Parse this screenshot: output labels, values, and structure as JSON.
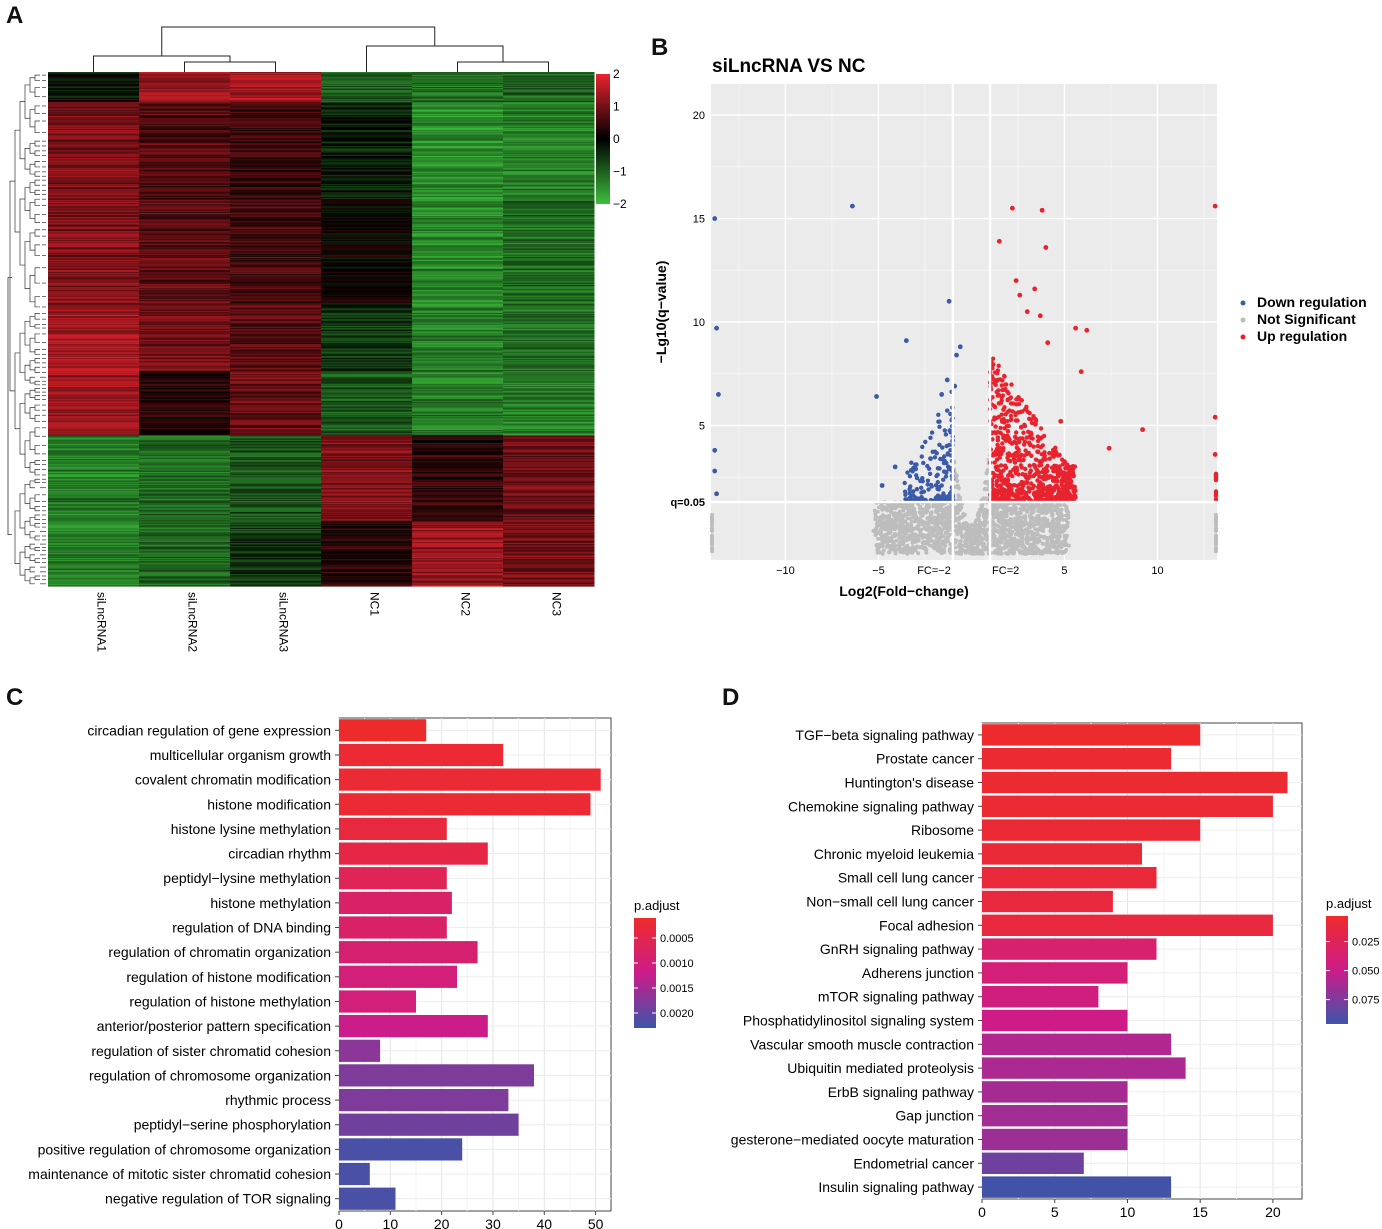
{
  "panels": {
    "a": "A",
    "b": "B",
    "c": "C",
    "d": "D"
  },
  "colors": {
    "heat_low": "#3cbf3c",
    "heat_mid": "#000000",
    "heat_high": "#e8232e",
    "down": "#3b5ba8",
    "ns": "#bdbdbd",
    "up": "#e8232e",
    "padj_low": "#ee2b2b",
    "padj_mid": "#cc1c8a",
    "padj_high": "#3c55a8",
    "plot_bg": "#ebebeb"
  },
  "chart_data": [
    {
      "type": "heatmap",
      "id": "A",
      "columns": [
        "siLncRNA1",
        "siLncRNA2",
        "siLncRNA3",
        "NC1",
        "NC2",
        "NC3"
      ],
      "colorbar": {
        "ticks": [
          "2",
          "1",
          "0",
          "−1",
          "−2"
        ],
        "range": [
          -2,
          2
        ]
      },
      "row_blocks": [
        {
          "rows": 28,
          "values": [
            -0.2,
            1.3,
            1.4,
            -1.0,
            -1.2,
            -1.0
          ]
        },
        {
          "rows": 90,
          "values": [
            1.0,
            0.7,
            0.5,
            -0.3,
            -1.5,
            -1.3
          ]
        },
        {
          "rows": 100,
          "values": [
            1.1,
            0.8,
            0.6,
            0.0,
            -1.4,
            -1.1
          ]
        },
        {
          "rows": 60,
          "values": [
            1.4,
            1.0,
            0.8,
            -0.6,
            -1.3,
            -1.2
          ]
        },
        {
          "rows": 60,
          "values": [
            1.3,
            0.3,
            0.9,
            -0.9,
            -1.3,
            -1.3
          ]
        },
        {
          "rows": 80,
          "values": [
            -1.3,
            -1.1,
            -0.9,
            1.1,
            0.4,
            0.9
          ]
        },
        {
          "rows": 60,
          "values": [
            -1.3,
            -1.0,
            -0.6,
            0.3,
            1.3,
            1.0
          ]
        }
      ]
    },
    {
      "type": "scatter",
      "id": "B",
      "title": "siLncRNA VS NC",
      "xlabel": "Log2(Fold−change)",
      "ylabel": "−Lg10(q−value)",
      "xlim": [
        -14,
        13.2
      ],
      "ylim": [
        -1.5,
        21.5
      ],
      "xticks": [
        "−10",
        "−5",
        "5",
        "10"
      ],
      "xtick_values": [
        -10,
        -5,
        5,
        10
      ],
      "yticks": [
        "5",
        "10",
        "15",
        "20"
      ],
      "ytick_values": [
        5,
        10,
        15,
        20
      ],
      "fc_lines": [
        -1,
        1
      ],
      "fc_labels": [
        "FC=−2",
        "FC=2"
      ],
      "q_line": 1.3,
      "q_label": "q=0.05",
      "legend": [
        "Down regulation",
        "Not Significant",
        "Up regulation"
      ],
      "down_points": [
        [
          -6.4,
          15.6
        ],
        [
          -13.8,
          15.0
        ],
        [
          -1.2,
          11.0
        ],
        [
          -3.5,
          9.1
        ],
        [
          -0.6,
          8.8
        ],
        [
          -0.8,
          8.4
        ],
        [
          -13.7,
          9.7
        ],
        [
          -5.1,
          6.4
        ],
        [
          -1.3,
          7.2
        ],
        [
          -0.9,
          6.9
        ],
        [
          -1.6,
          6.5
        ],
        [
          -13.6,
          6.5
        ],
        [
          -4.1,
          3.0
        ],
        [
          -13.8,
          3.8
        ],
        [
          -4.8,
          2.1
        ],
        [
          -3.0,
          2.9
        ],
        [
          -2.2,
          3.4
        ],
        [
          -13.7,
          1.7
        ],
        [
          -13.8,
          2.8
        ]
      ],
      "up_points": [
        [
          2.2,
          15.5
        ],
        [
          3.8,
          15.4
        ],
        [
          13.1,
          15.6
        ],
        [
          1.5,
          13.9
        ],
        [
          4.0,
          13.6
        ],
        [
          2.4,
          12.0
        ],
        [
          3.4,
          11.6
        ],
        [
          2.6,
          11.3
        ],
        [
          3.0,
          10.5
        ],
        [
          3.7,
          10.3
        ],
        [
          5.6,
          9.7
        ],
        [
          6.2,
          9.6
        ],
        [
          4.1,
          9.0
        ],
        [
          5.9,
          7.6
        ],
        [
          9.2,
          4.8
        ],
        [
          7.4,
          3.9
        ],
        [
          13.1,
          5.4
        ],
        [
          4.8,
          5.2
        ],
        [
          13.1,
          3.6
        ]
      ]
    },
    {
      "type": "bar",
      "id": "C",
      "orientation": "horizontal",
      "categories": [
        "circadian regulation of gene expression",
        "multicellular organism growth",
        "covalent chromatin modification",
        "histone modification",
        "histone lysine methylation",
        "circadian rhythm",
        "peptidyl−lysine methylation",
        "histone methylation",
        "regulation of DNA binding",
        "regulation of chromatin organization",
        "regulation of histone modification",
        "regulation of histone methylation",
        "anterior/posterior pattern specification",
        "regulation of sister chromatid cohesion",
        "regulation of chromosome organization",
        "rhythmic process",
        "peptidyl−serine phosphorylation",
        "positive regulation of chromosome organization",
        "maintenance of mitotic sister chromatid cohesion",
        "negative regulation of TOR signaling"
      ],
      "values": [
        17,
        32,
        51,
        49,
        21,
        29,
        21,
        22,
        21,
        27,
        23,
        15,
        29,
        8,
        38,
        33,
        35,
        24,
        6,
        11
      ],
      "p_adjust": [
        0.0001,
        0.0002,
        0.0002,
        0.0002,
        0.0003,
        0.0004,
        0.0006,
        0.0008,
        0.0008,
        0.0009,
        0.001,
        0.001,
        0.0012,
        0.0017,
        0.0018,
        0.0018,
        0.0019,
        0.0022,
        0.0022,
        0.0022
      ],
      "xlim": [
        0,
        53
      ],
      "xticks": [
        "0",
        "10",
        "20",
        "30",
        "40",
        "50"
      ],
      "xtick_values": [
        0,
        10,
        20,
        30,
        40,
        50
      ],
      "legend": {
        "title": "p.adjust",
        "labels": [
          "0.0005",
          "0.0010",
          "0.0015",
          "0.0020"
        ],
        "range": [
          0.0001,
          0.0023
        ],
        "values": [
          0.0005,
          0.001,
          0.0015,
          0.002
        ]
      }
    },
    {
      "type": "bar",
      "id": "D",
      "orientation": "horizontal",
      "categories": [
        "TGF−beta signaling pathway",
        "Prostate cancer",
        "Huntington's disease",
        "Chemokine signaling pathway",
        "Ribosome",
        "Chronic myeloid leukemia",
        "Small cell lung cancer",
        "Non−small cell lung cancer",
        "Focal adhesion",
        "GnRH signaling pathway",
        "Adherens junction",
        "mTOR signaling pathway",
        "Phosphatidylinositol signaling system",
        "Vascular smooth muscle contraction",
        "Ubiquitin mediated proteolysis",
        "ErbB signaling pathway",
        "Gap junction",
        "gesterone−mediated oocyte maturation",
        "Endometrial cancer",
        "Insulin signaling pathway"
      ],
      "values": [
        15,
        13,
        21,
        20,
        15,
        11,
        12,
        9,
        20,
        12,
        10,
        8,
        10,
        13,
        14,
        10,
        10,
        10,
        7,
        13
      ],
      "p_adjust": [
        0.004,
        0.006,
        0.006,
        0.007,
        0.008,
        0.009,
        0.01,
        0.012,
        0.013,
        0.035,
        0.04,
        0.044,
        0.048,
        0.058,
        0.06,
        0.062,
        0.063,
        0.065,
        0.08,
        0.094
      ],
      "xlim": [
        0,
        22
      ],
      "xticks": [
        "0",
        "5",
        "10",
        "15",
        "20"
      ],
      "xtick_values": [
        0,
        5,
        10,
        15,
        20
      ],
      "legend": {
        "title": "p.adjust",
        "labels": [
          "0.025",
          "0.050",
          "0.075"
        ],
        "range": [
          0.003,
          0.096
        ],
        "values": [
          0.025,
          0.05,
          0.075
        ]
      }
    }
  ]
}
